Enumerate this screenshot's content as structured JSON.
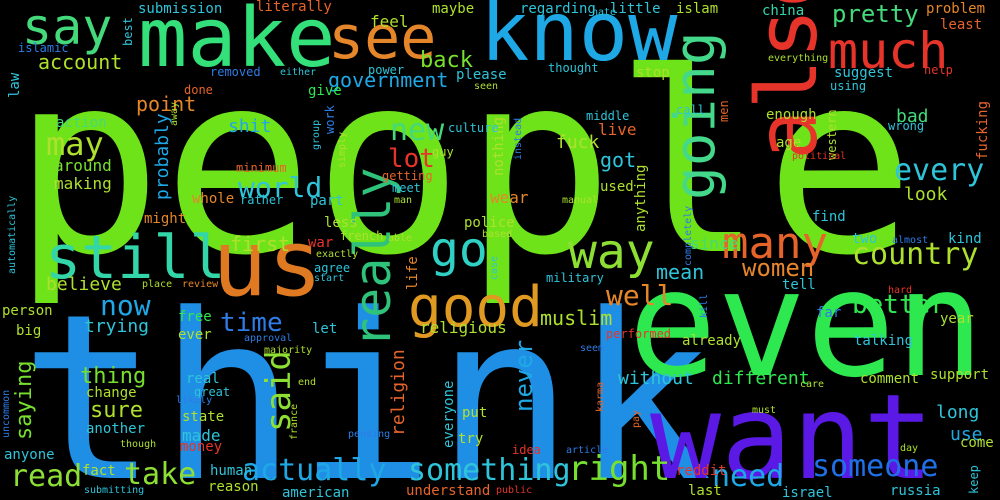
{
  "words": [
    {
      "text": "people",
      "color": "#6fe319"
    },
    {
      "text": "think",
      "color": "#1f8fe6"
    },
    {
      "text": "even",
      "color": "#2ee84f"
    },
    {
      "text": "want",
      "color": "#5b19e6"
    },
    {
      "text": "know",
      "color": "#1ea8e5"
    },
    {
      "text": "make",
      "color": "#33e07a"
    },
    {
      "text": "also",
      "color": "#e6342a"
    },
    {
      "text": "see",
      "color": "#e6862a"
    },
    {
      "text": "much",
      "color": "#e6342a"
    },
    {
      "text": "say",
      "color": "#44d97a"
    },
    {
      "text": "us",
      "color": "#e07a22"
    },
    {
      "text": "still",
      "color": "#33d6a8"
    },
    {
      "text": "going",
      "color": "#44d98a"
    },
    {
      "text": "really",
      "color": "#2ec27a"
    },
    {
      "text": "good",
      "color": "#e09a22"
    },
    {
      "text": "go",
      "color": "#2ed1c4"
    },
    {
      "text": "way",
      "color": "#8de033"
    },
    {
      "text": "many",
      "color": "#e6642a"
    },
    {
      "text": "said",
      "color": "#8de033"
    },
    {
      "text": "right",
      "color": "#77e02e"
    },
    {
      "text": "something",
      "color": "#2ec4d9"
    },
    {
      "text": "actually",
      "color": "#1ea8e5"
    },
    {
      "text": "take",
      "color": "#8de033"
    },
    {
      "text": "read",
      "color": "#8de033"
    },
    {
      "text": "need",
      "color": "#1ea8e5"
    },
    {
      "text": "someone",
      "color": "#1f6fe6"
    },
    {
      "text": "every",
      "color": "#2ec4d9"
    },
    {
      "text": "country",
      "color": "#aee02e"
    },
    {
      "text": "world",
      "color": "#2ec4d9"
    },
    {
      "text": "may",
      "color": "#aee02e"
    },
    {
      "text": "new",
      "color": "#44d97a"
    },
    {
      "text": "lot",
      "color": "#e6342a"
    },
    {
      "text": "well",
      "color": "#e6862a"
    },
    {
      "text": "now",
      "color": "#1ea8e5"
    },
    {
      "text": "time",
      "color": "#2e7ce6"
    },
    {
      "text": "women",
      "color": "#e6862a"
    },
    {
      "text": "better",
      "color": "#2ee84f"
    },
    {
      "text": "pretty",
      "color": "#44d97a"
    },
    {
      "text": "account",
      "color": "#aee02e"
    },
    {
      "text": "government",
      "color": "#1ea8e5"
    },
    {
      "text": "back",
      "color": "#77e02e"
    },
    {
      "text": "point",
      "color": "#e6862a"
    },
    {
      "text": "never",
      "color": "#1ea8e5"
    },
    {
      "text": "thing",
      "color": "#77e02e"
    },
    {
      "text": "sure",
      "color": "#aee02e"
    },
    {
      "text": "saying",
      "color": "#77e02e"
    },
    {
      "text": "probably",
      "color": "#1ea8e5"
    },
    {
      "text": "muslim",
      "color": "#aee02e"
    },
    {
      "text": "first",
      "color": "#aee02e"
    },
    {
      "text": "believe",
      "color": "#aee02e"
    },
    {
      "text": "trying",
      "color": "#2ec4d9"
    },
    {
      "text": "shit",
      "color": "#1ea8e5"
    },
    {
      "text": "mean",
      "color": "#2ec4d9"
    },
    {
      "text": "without",
      "color": "#2ec4d9"
    },
    {
      "text": "different",
      "color": "#2ee84f"
    },
    {
      "text": "religion",
      "color": "#e6642a"
    },
    {
      "text": "fuck",
      "color": "#aee02e"
    },
    {
      "text": "got",
      "color": "#2ec4d9"
    },
    {
      "text": "live",
      "color": "#e6642a"
    },
    {
      "text": "bad",
      "color": "#44d97a"
    },
    {
      "text": "look",
      "color": "#aee02e"
    },
    {
      "text": "since",
      "color": "#44d97a"
    },
    {
      "text": "use",
      "color": "#1ea8e5"
    },
    {
      "text": "long",
      "color": "#2ec4d9"
    },
    {
      "text": "come",
      "color": "#aee02e"
    },
    {
      "text": "made",
      "color": "#2ec4d9"
    },
    {
      "text": "religious",
      "color": "#aee02e"
    },
    {
      "text": "wear",
      "color": "#e6862a"
    },
    {
      "text": "feel",
      "color": "#aee02e"
    },
    {
      "text": "maybe",
      "color": "#aee02e"
    },
    {
      "text": "little",
      "color": "#2ec4d9"
    },
    {
      "text": "islam",
      "color": "#aee02e"
    },
    {
      "text": "china",
      "color": "#33d6a8"
    },
    {
      "text": "problem",
      "color": "#e6862a"
    },
    {
      "text": "least",
      "color": "#e6642a"
    },
    {
      "text": "submission",
      "color": "#2ec4d9"
    },
    {
      "text": "literally",
      "color": "#e6642a"
    },
    {
      "text": "regarding",
      "color": "#2ec4d9"
    },
    {
      "text": "please",
      "color": "#2ec4d9"
    },
    {
      "text": "thought",
      "color": "#2ec4d9"
    },
    {
      "text": "stop",
      "color": "#aee02e"
    },
    {
      "text": "suggest",
      "color": "#2ec4d9"
    },
    {
      "text": "using",
      "color": "#2ec4d9"
    },
    {
      "text": "give",
      "color": "#2ee84f"
    },
    {
      "text": "power",
      "color": "#2ec4d9"
    },
    {
      "text": "removed",
      "color": "#2e7ce6"
    },
    {
      "text": "done",
      "color": "#e6642a"
    },
    {
      "text": "action",
      "color": "#44d97a"
    },
    {
      "text": "around",
      "color": "#77e02e"
    },
    {
      "text": "making",
      "color": "#aee02e"
    },
    {
      "text": "might",
      "color": "#e6862a"
    },
    {
      "text": "whole",
      "color": "#e6862a"
    },
    {
      "text": "part",
      "color": "#2ec4d9"
    },
    {
      "text": "less",
      "color": "#aee02e"
    },
    {
      "text": "war",
      "color": "#e6342a"
    },
    {
      "text": "agree",
      "color": "#2ec4d9"
    },
    {
      "text": "police",
      "color": "#aee02e"
    },
    {
      "text": "military",
      "color": "#2ec4d9"
    },
    {
      "text": "tell",
      "color": "#2ec4d9"
    },
    {
      "text": "far",
      "color": "#2e7ce6"
    },
    {
      "text": "talking",
      "color": "#2ec4d9"
    },
    {
      "text": "already",
      "color": "#aee02e"
    },
    {
      "text": "enough",
      "color": "#aee02e"
    },
    {
      "text": "age",
      "color": "#aee02e"
    },
    {
      "text": "find",
      "color": "#2ec4d9"
    },
    {
      "text": "two",
      "color": "#2ec4d9"
    },
    {
      "text": "kind",
      "color": "#2ec4d9"
    },
    {
      "text": "person",
      "color": "#aee02e"
    },
    {
      "text": "big",
      "color": "#aee02e"
    },
    {
      "text": "free",
      "color": "#2ee84f"
    },
    {
      "text": "ever",
      "color": "#aee02e"
    },
    {
      "text": "let",
      "color": "#2ec4d9"
    },
    {
      "text": "real",
      "color": "#2ec4d9"
    },
    {
      "text": "great",
      "color": "#2ec4d9"
    },
    {
      "text": "change",
      "color": "#aee02e"
    },
    {
      "text": "state",
      "color": "#aee02e"
    },
    {
      "text": "another",
      "color": "#2ec4d9"
    },
    {
      "text": "money",
      "color": "#e6342a"
    },
    {
      "text": "human",
      "color": "#2ec4d9"
    },
    {
      "text": "reason",
      "color": "#aee02e"
    },
    {
      "text": "american",
      "color": "#2ec4d9"
    },
    {
      "text": "anyone",
      "color": "#2ec4d9"
    },
    {
      "text": "fact",
      "color": "#aee02e"
    },
    {
      "text": "everyone",
      "color": "#2ec4d9"
    },
    {
      "text": "put",
      "color": "#aee02e"
    },
    {
      "text": "try",
      "color": "#aee02e"
    },
    {
      "text": "idea",
      "color": "#e6342a"
    },
    {
      "text": "understand",
      "color": "#e6642a"
    },
    {
      "text": "reddit",
      "color": "#e6342a"
    },
    {
      "text": "last",
      "color": "#aee02e"
    },
    {
      "text": "israel",
      "color": "#2ec4d9"
    },
    {
      "text": "russia",
      "color": "#2ec4d9"
    },
    {
      "text": "comment",
      "color": "#aee02e"
    },
    {
      "text": "support",
      "color": "#aee02e"
    },
    {
      "text": "year",
      "color": "#aee02e"
    },
    {
      "text": "wrong",
      "color": "#2ec4d9"
    },
    {
      "text": "fucking",
      "color": "#e6642a"
    },
    {
      "text": "western",
      "color": "#aee02e"
    },
    {
      "text": "help",
      "color": "#e6342a"
    },
    {
      "text": "getting",
      "color": "#e6642a"
    },
    {
      "text": "meet",
      "color": "#2ec4d9"
    },
    {
      "text": "minimum",
      "color": "#e6642a"
    },
    {
      "text": "guy",
      "color": "#aee02e"
    },
    {
      "text": "nothing",
      "color": "#aee02e"
    },
    {
      "text": "anything",
      "color": "#aee02e"
    },
    {
      "text": "used",
      "color": "#aee02e"
    },
    {
      "text": "middle",
      "color": "#2ec4d9"
    },
    {
      "text": "call",
      "color": "#2ec4d9"
    },
    {
      "text": "men",
      "color": "#e6642a"
    },
    {
      "text": "culture",
      "color": "#2ec4d9"
    },
    {
      "text": "french",
      "color": "#aee02e"
    },
    {
      "text": "life",
      "color": "#e6862a"
    },
    {
      "text": "case",
      "color": "#2ec4d9"
    },
    {
      "text": "rather",
      "color": "#2ec4d9"
    },
    {
      "text": "work",
      "color": "#2e7ce6"
    },
    {
      "text": "either",
      "color": "#2ec4d9"
    },
    {
      "text": "islamic",
      "color": "#2e7ce6"
    },
    {
      "text": "law",
      "color": "#2ec4d9"
    },
    {
      "text": "best",
      "color": "#2ec4d9"
    },
    {
      "text": "hate",
      "color": "#2ec4d9"
    },
    {
      "text": "everything",
      "color": "#aee02e"
    },
    {
      "text": "political",
      "color": "#e6342a"
    },
    {
      "text": "almost",
      "color": "#2e7ce6"
    },
    {
      "text": "hard",
      "color": "#e6342a"
    },
    {
      "text": "keep",
      "color": "#2ec4d9"
    },
    {
      "text": "day",
      "color": "#aee02e"
    },
    {
      "text": "care",
      "color": "#aee02e"
    },
    {
      "text": "must",
      "color": "#aee02e"
    },
    {
      "text": "pay",
      "color": "#e6642a"
    },
    {
      "text": "article",
      "color": "#2e7ce6"
    },
    {
      "text": "public",
      "color": "#e6342a"
    },
    {
      "text": "submitting",
      "color": "#2ec4d9"
    },
    {
      "text": "though",
      "color": "#aee02e"
    },
    {
      "text": "end",
      "color": "#aee02e"
    },
    {
      "text": "france",
      "color": "#aee02e"
    },
    {
      "text": "pending",
      "color": "#2e7ce6"
    },
    {
      "text": "karma",
      "color": "#e6642a"
    },
    {
      "text": "seem",
      "color": "#2e7ce6"
    },
    {
      "text": "performed",
      "color": "#e6342a"
    },
    {
      "text": "kill",
      "color": "#2e7ce6"
    },
    {
      "text": "completely",
      "color": "#2e7ce6"
    },
    {
      "text": "manual",
      "color": "#aee02e"
    },
    {
      "text": "man",
      "color": "#aee02e"
    },
    {
      "text": "exactly",
      "color": "#aee02e"
    },
    {
      "text": "able",
      "color": "#aee02e"
    },
    {
      "text": "based",
      "color": "#aee02e"
    },
    {
      "text": "start",
      "color": "#2ec4d9"
    },
    {
      "text": "place",
      "color": "#aee02e"
    },
    {
      "text": "review",
      "color": "#e6862a"
    },
    {
      "text": "approval",
      "color": "#2e7ce6"
    },
    {
      "text": "majority",
      "color": "#aee02e"
    },
    {
      "text": "likely",
      "color": "#2e7ce6"
    },
    {
      "text": "uncommon",
      "color": "#2e7ce6"
    },
    {
      "text": "automatically",
      "color": "#2ec4d9"
    },
    {
      "text": "simply",
      "color": "#aee02e"
    },
    {
      "text": "group",
      "color": "#2ec4d9"
    },
    {
      "text": "away",
      "color": "#aee02e"
    },
    {
      "text": "instead",
      "color": "#2e7ce6"
    },
    {
      "text": "seen",
      "color": "#aee02e"
    }
  ]
}
